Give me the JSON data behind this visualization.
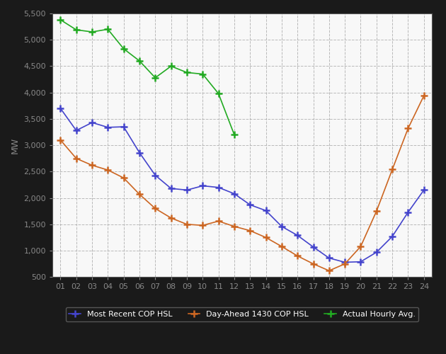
{
  "hours": [
    1,
    2,
    3,
    4,
    5,
    6,
    7,
    8,
    9,
    10,
    11,
    12,
    13,
    14,
    15,
    16,
    17,
    18,
    19,
    20,
    21,
    22,
    23,
    24
  ],
  "blue": [
    3700,
    3280,
    3430,
    3340,
    3350,
    2860,
    2430,
    2180,
    2150,
    2230,
    2200,
    2080,
    1870,
    1760,
    1460,
    1290,
    1070,
    860,
    780,
    790,
    970,
    1270,
    1730,
    2150
  ],
  "orange": [
    3100,
    2750,
    2620,
    2530,
    2380,
    2070,
    1800,
    1620,
    1500,
    1480,
    1560,
    1460,
    1380,
    1250,
    1080,
    900,
    750,
    620,
    750,
    1080,
    1750,
    2540,
    3320,
    3940
  ],
  "green": [
    5380,
    5190,
    5150,
    5200,
    4830,
    4600,
    4280,
    4500,
    4380,
    4350,
    3980,
    3200,
    null,
    null,
    null,
    null,
    null,
    null,
    null,
    null,
    null,
    null,
    null,
    null
  ],
  "blue_color": "#4444cc",
  "orange_color": "#cc6622",
  "green_color": "#22aa22",
  "ylabel": "MW",
  "ylim": [
    500,
    5500
  ],
  "xlim_min": 0.5,
  "xlim_max": 24.5,
  "yticks": [
    500,
    1000,
    1500,
    2000,
    2500,
    3000,
    3500,
    4000,
    4500,
    5000,
    5500
  ],
  "xtick_labels": [
    "01",
    "02",
    "03",
    "04",
    "05",
    "06",
    "07",
    "08",
    "09",
    "10",
    "11",
    "12",
    "13",
    "14",
    "15",
    "16",
    "17",
    "18",
    "19",
    "20",
    "21",
    "22",
    "23",
    "24"
  ],
  "legend_blue": "Most Recent COP HSL",
  "legend_orange": "Day-Ahead 1430 COP HSL",
  "legend_green": "Actual Hourly Avg.",
  "plot_bg": "#f0f0f0",
  "fig_bg": "#1a1a1a",
  "grid_color": "#aaaaaa",
  "tick_color": "#888888",
  "spine_color": "#555555"
}
